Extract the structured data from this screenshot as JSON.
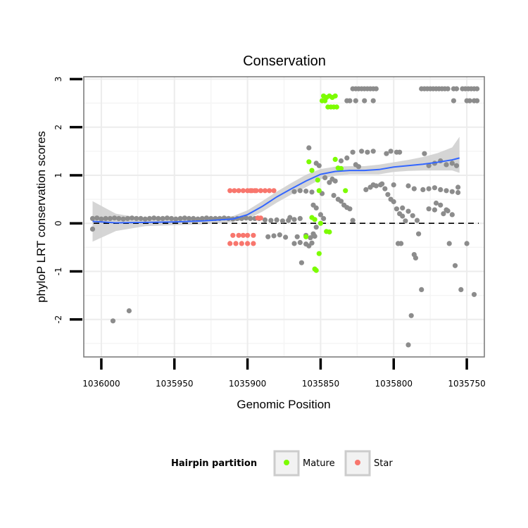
{
  "chart_data": {
    "type": "scatter",
    "title": "Conservation",
    "xlabel": "Genomic Position",
    "ylabel": "phyloP LRT conservation scores",
    "x_reversed": true,
    "xlim": [
      1036012,
      1035738
    ],
    "ylim": [
      -2.78,
      3.05
    ],
    "x_ticks": [
      1036000,
      1035950,
      1035900,
      1035850,
      1035800,
      1035750
    ],
    "x_tick_labels": [
      "1036000",
      "1035950",
      "1035900",
      "1035850",
      "1035800",
      "1035750"
    ],
    "y_ticks": [
      -2,
      -1,
      0,
      1,
      2,
      3
    ],
    "y_tick_labels": [
      "-2",
      "-1",
      "0",
      "1",
      "2",
      "3"
    ],
    "grid": true,
    "reference_line": {
      "y": 0,
      "style": "dashed"
    },
    "legend": {
      "title": "Hairpin partition",
      "position": "bottom",
      "entries": [
        {
          "label": "Mature",
          "color": "#7CFC00"
        },
        {
          "label": "Star",
          "color": "#F8766D"
        }
      ]
    },
    "colors": {
      "other": "#8c8c8c",
      "mature": "#7CFC00",
      "star": "#F8766D",
      "smooth": "#3366FF",
      "ribbon": "#d0d0d0"
    },
    "series": [
      {
        "name": "Other",
        "points": [
          [
            1036006,
            0.1
          ],
          [
            1036003,
            0.11
          ],
          [
            1036000,
            0.09
          ],
          [
            1035997,
            0.1
          ],
          [
            1035994,
            0.1
          ],
          [
            1035991,
            0.11
          ],
          [
            1035988,
            0.1
          ],
          [
            1035985,
            0.09
          ],
          [
            1035982,
            0.1
          ],
          [
            1035979,
            0.11
          ],
          [
            1035976,
            0.1
          ],
          [
            1035973,
            0.1
          ],
          [
            1035970,
            0.09
          ],
          [
            1035967,
            0.1
          ],
          [
            1035964,
            0.11
          ],
          [
            1035961,
            0.1
          ],
          [
            1035958,
            0.1
          ],
          [
            1035955,
            0.11
          ],
          [
            1035952,
            0.1
          ],
          [
            1035949,
            0.09
          ],
          [
            1035946,
            0.1
          ],
          [
            1035943,
            0.11
          ],
          [
            1035940,
            0.1
          ],
          [
            1035937,
            0.1
          ],
          [
            1035934,
            0.09
          ],
          [
            1035931,
            0.1
          ],
          [
            1035928,
            0.11
          ],
          [
            1035925,
            0.1
          ],
          [
            1035922,
            0.1
          ],
          [
            1035919,
            0.1
          ],
          [
            1035916,
            0.11
          ],
          [
            1035913,
            0.1
          ],
          [
            1035910,
            0.09
          ],
          [
            1035907,
            0.1
          ],
          [
            1035904,
            0.1
          ],
          [
            1035901,
            0.11
          ],
          [
            1035898,
            0.1
          ],
          [
            1035895,
            0.1
          ],
          [
            1035892,
            0.1
          ],
          [
            1036006,
            -0.12
          ],
          [
            1035992,
            -2.03
          ],
          [
            1035981,
            -1.82
          ],
          [
            1035888,
            0.07
          ],
          [
            1035884,
            0.06
          ],
          [
            1035880,
            0.07
          ],
          [
            1035876,
            0.05
          ],
          [
            1035872,
            0.06
          ],
          [
            1035886,
            -0.28
          ],
          [
            1035882,
            -0.26
          ],
          [
            1035878,
            -0.24
          ],
          [
            1035874,
            -0.29
          ],
          [
            1035871,
            0.12
          ],
          [
            1035868,
            0.08
          ],
          [
            1035864,
            0.1
          ],
          [
            1035866,
            -0.28
          ],
          [
            1035860,
            -0.25
          ],
          [
            1035857,
            -0.3
          ],
          [
            1035854,
            -0.27
          ],
          [
            1035868,
            -0.42
          ],
          [
            1035864,
            -0.4
          ],
          [
            1035860,
            -0.43
          ],
          [
            1035856,
            -0.41
          ],
          [
            1035863,
            -0.82
          ],
          [
            1035858,
            -0.47
          ],
          [
            1035855,
            -0.22
          ],
          [
            1035853,
            -0.08
          ],
          [
            1035868,
            0.66
          ],
          [
            1035864,
            0.68
          ],
          [
            1035860,
            0.67
          ],
          [
            1035856,
            0.65
          ],
          [
            1035858,
            1.57
          ],
          [
            1035853,
            1.25
          ],
          [
            1035851,
            1.2
          ],
          [
            1035849,
            0.62
          ],
          [
            1035855,
            0.38
          ],
          [
            1035853,
            0.32
          ],
          [
            1035850,
            0.18
          ],
          [
            1035848,
            0.1
          ],
          [
            1035841,
            0.58
          ],
          [
            1035838,
            0.5
          ],
          [
            1035836,
            0.46
          ],
          [
            1035834,
            0.38
          ],
          [
            1035832,
            0.33
          ],
          [
            1035830,
            0.3
          ],
          [
            1035828,
            0.06
          ],
          [
            1035847,
            0.95
          ],
          [
            1035844,
            0.85
          ],
          [
            1035842,
            0.92
          ],
          [
            1035840,
            0.88
          ],
          [
            1035826,
            1.22
          ],
          [
            1035824,
            1.18
          ],
          [
            1035836,
            1.3
          ],
          [
            1035832,
            1.36
          ],
          [
            1035828,
            1.48
          ],
          [
            1035822,
            1.5
          ],
          [
            1035818,
            1.48
          ],
          [
            1035814,
            1.5
          ],
          [
            1035832,
            2.55
          ],
          [
            1035830,
            2.55
          ],
          [
            1035828,
            2.8
          ],
          [
            1035826,
            2.8
          ],
          [
            1035824,
            2.8
          ],
          [
            1035822,
            2.8
          ],
          [
            1035820,
            2.8
          ],
          [
            1035818,
            2.8
          ],
          [
            1035816,
            2.8
          ],
          [
            1035814,
            2.8
          ],
          [
            1035812,
            2.8
          ],
          [
            1035826,
            2.55
          ],
          [
            1035820,
            2.55
          ],
          [
            1035814,
            2.55
          ],
          [
            1035819,
            0.7
          ],
          [
            1035816,
            0.75
          ],
          [
            1035814,
            0.8
          ],
          [
            1035812,
            0.78
          ],
          [
            1035809,
            0.8
          ],
          [
            1035806,
            0.72
          ],
          [
            1035804,
            0.6
          ],
          [
            1035802,
            0.5
          ],
          [
            1035800,
            0.45
          ],
          [
            1035798,
            0.3
          ],
          [
            1035796,
            0.2
          ],
          [
            1035794,
            0.15
          ],
          [
            1035792,
            0.05
          ],
          [
            1035805,
            1.45
          ],
          [
            1035802,
            1.5
          ],
          [
            1035798,
            1.48
          ],
          [
            1035796,
            1.48
          ],
          [
            1035808,
            0.82
          ],
          [
            1035800,
            0.8
          ],
          [
            1035790,
            0.78
          ],
          [
            1035786,
            0.72
          ],
          [
            1035794,
            0.32
          ],
          [
            1035790,
            0.25
          ],
          [
            1035787,
            0.16
          ],
          [
            1035784,
            0.06
          ],
          [
            1035797,
            -0.42
          ],
          [
            1035795,
            -0.42
          ],
          [
            1035790,
            -2.53
          ],
          [
            1035788,
            -1.92
          ],
          [
            1035786,
            -0.65
          ],
          [
            1035785,
            -0.72
          ],
          [
            1035783,
            -0.22
          ],
          [
            1035781,
            -1.38
          ],
          [
            1035780,
            0.7
          ],
          [
            1035776,
            0.72
          ],
          [
            1035772,
            0.74
          ],
          [
            1035768,
            0.7
          ],
          [
            1035764,
            0.68
          ],
          [
            1035760,
            0.66
          ],
          [
            1035756,
            0.64
          ],
          [
            1035779,
            1.45
          ],
          [
            1035776,
            1.2
          ],
          [
            1035772,
            1.25
          ],
          [
            1035768,
            1.3
          ],
          [
            1035764,
            1.22
          ],
          [
            1035760,
            1.25
          ],
          [
            1035757,
            1.2
          ],
          [
            1035776,
            0.3
          ],
          [
            1035772,
            0.28
          ],
          [
            1035766,
            0.2
          ],
          [
            1035764,
            0.28
          ],
          [
            1035760,
            0.18
          ],
          [
            1035771,
            0.42
          ],
          [
            1035768,
            0.38
          ],
          [
            1035763,
            0.26
          ],
          [
            1035762,
            -0.42
          ],
          [
            1035758,
            -0.88
          ],
          [
            1035756,
            0.75
          ],
          [
            1035754,
            -1.38
          ],
          [
            1035750,
            -0.42
          ],
          [
            1035745,
            -1.48
          ],
          [
            1035781,
            2.8
          ],
          [
            1035779,
            2.8
          ],
          [
            1035777,
            2.8
          ],
          [
            1035775,
            2.8
          ],
          [
            1035773,
            2.8
          ],
          [
            1035771,
            2.8
          ],
          [
            1035769,
            2.8
          ],
          [
            1035767,
            2.8
          ],
          [
            1035765,
            2.8
          ],
          [
            1035763,
            2.8
          ],
          [
            1035759,
            2.8
          ],
          [
            1035757,
            2.8
          ],
          [
            1035753,
            2.8
          ],
          [
            1035751,
            2.8
          ],
          [
            1035749,
            2.8
          ],
          [
            1035747,
            2.8
          ],
          [
            1035745,
            2.8
          ],
          [
            1035743,
            2.8
          ],
          [
            1035759,
            2.55
          ],
          [
            1035750,
            2.55
          ],
          [
            1035748,
            2.55
          ],
          [
            1035745,
            2.55
          ],
          [
            1035743,
            2.55
          ]
        ]
      },
      {
        "name": "Mature",
        "points": [
          [
            1035848,
            2.65
          ],
          [
            1035846,
            2.62
          ],
          [
            1035844,
            2.65
          ],
          [
            1035842,
            2.62
          ],
          [
            1035840,
            2.65
          ],
          [
            1035849,
            2.55
          ],
          [
            1035847,
            2.55
          ],
          [
            1035845,
            2.42
          ],
          [
            1035843,
            2.42
          ],
          [
            1035841,
            2.42
          ],
          [
            1035839,
            2.42
          ],
          [
            1035840,
            1.33
          ],
          [
            1035838,
            1.15
          ],
          [
            1035836,
            1.14
          ],
          [
            1035858,
            1.28
          ],
          [
            1035856,
            1.1
          ],
          [
            1035852,
            0.9
          ],
          [
            1035851,
            0.68
          ],
          [
            1035833,
            0.68
          ],
          [
            1035856,
            0.12
          ],
          [
            1035854,
            0.08
          ],
          [
            1035850,
            0.0
          ],
          [
            1035846,
            -0.17
          ],
          [
            1035844,
            -0.18
          ],
          [
            1035860,
            -0.28
          ],
          [
            1035851,
            -0.63
          ],
          [
            1035854,
            -0.95
          ],
          [
            1035853,
            -0.98
          ]
        ]
      },
      {
        "name": "Star",
        "points": [
          [
            1035912,
            0.68
          ],
          [
            1035909,
            0.68
          ],
          [
            1035906,
            0.68
          ],
          [
            1035903,
            0.68
          ],
          [
            1035900,
            0.68
          ],
          [
            1035897,
            0.68
          ],
          [
            1035894,
            0.68
          ],
          [
            1035891,
            0.68
          ],
          [
            1035888,
            0.68
          ],
          [
            1035885,
            0.68
          ],
          [
            1035882,
            0.68
          ],
          [
            1035898,
            0.68
          ],
          [
            1035895,
            0.68
          ],
          [
            1035910,
            -0.25
          ],
          [
            1035906,
            -0.25
          ],
          [
            1035903,
            -0.25
          ],
          [
            1035900,
            -0.25
          ],
          [
            1035896,
            -0.25
          ],
          [
            1035912,
            -0.42
          ],
          [
            1035908,
            -0.42
          ],
          [
            1035904,
            -0.42
          ],
          [
            1035900,
            -0.42
          ],
          [
            1035896,
            -0.42
          ],
          [
            1035893,
            0.11
          ],
          [
            1035891,
            0.11
          ]
        ]
      }
    ],
    "smooth": {
      "x": [
        1036006,
        1035990,
        1035970,
        1035950,
        1035930,
        1035910,
        1035900,
        1035890,
        1035880,
        1035870,
        1035860,
        1035850,
        1035840,
        1035830,
        1035820,
        1035810,
        1035800,
        1035790,
        1035780,
        1035770,
        1035760,
        1035755
      ],
      "y": [
        0.04,
        0.01,
        0.02,
        0.03,
        0.05,
        0.09,
        0.18,
        0.35,
        0.55,
        0.72,
        0.88,
        1.02,
        1.08,
        1.1,
        1.1,
        1.12,
        1.17,
        1.2,
        1.23,
        1.27,
        1.32,
        1.36
      ],
      "lower": [
        -0.38,
        -0.16,
        -0.06,
        -0.04,
        -0.02,
        0.03,
        0.09,
        0.24,
        0.43,
        0.6,
        0.75,
        0.92,
        0.99,
        1.02,
        1.02,
        1.02,
        1.07,
        1.09,
        1.1,
        1.1,
        1.1,
        1.05
      ],
      "upper": [
        0.46,
        0.2,
        0.1,
        0.1,
        0.12,
        0.15,
        0.27,
        0.46,
        0.66,
        0.84,
        1.01,
        1.13,
        1.18,
        1.19,
        1.19,
        1.22,
        1.27,
        1.32,
        1.38,
        1.46,
        1.58,
        1.8
      ]
    }
  }
}
